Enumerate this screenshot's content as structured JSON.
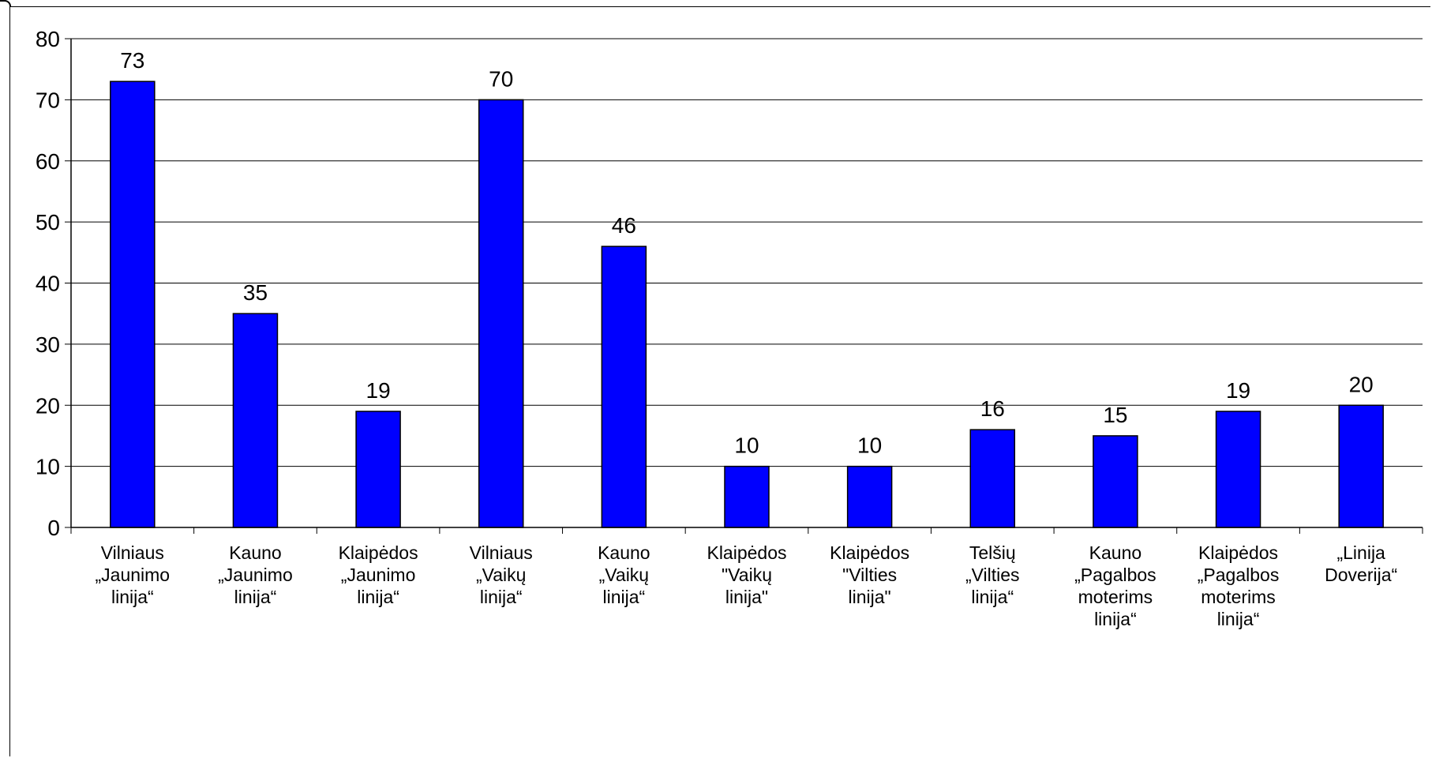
{
  "chart_data": {
    "type": "bar",
    "title": "",
    "xlabel": "",
    "ylabel": "",
    "ylim": [
      0,
      80
    ],
    "yticks": [
      0,
      10,
      20,
      30,
      40,
      50,
      60,
      70,
      80
    ],
    "grid": true,
    "legend": "none",
    "bar_color": "#0000FF",
    "categories": [
      [
        "Vilniaus",
        "„Jaunimo",
        "linija“"
      ],
      [
        "Kauno",
        "„Jaunimo",
        "linija“"
      ],
      [
        "Klaipėdos",
        "„Jaunimo",
        "linija“"
      ],
      [
        "Vilniaus",
        "„Vaikų",
        "linija“"
      ],
      [
        "Kauno",
        "„Vaikų",
        "linija“"
      ],
      [
        "Klaipėdos",
        "\"Vaikų",
        "linija\""
      ],
      [
        "Klaipėdos",
        "\"Vilties",
        "linija\""
      ],
      [
        "Telšių",
        "„Vilties",
        "linija“"
      ],
      [
        "Kauno",
        "„Pagalbos",
        "moterims",
        "linija“"
      ],
      [
        "Klaipėdos",
        "„Pagalbos",
        "moterims",
        "linija“"
      ],
      [
        "„Linija",
        "Doverija“"
      ]
    ],
    "values": [
      73,
      35,
      19,
      70,
      46,
      10,
      10,
      16,
      15,
      19,
      20
    ]
  }
}
